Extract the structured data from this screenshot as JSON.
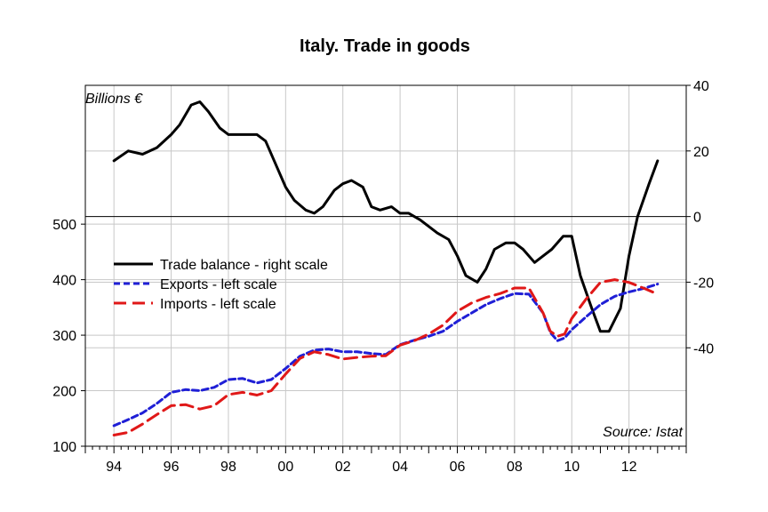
{
  "chart_data": {
    "type": "line",
    "title": "Italy. Trade in goods",
    "unit_label": "Billions €",
    "source": "Source: Istat",
    "x_tick_labels": [
      "94",
      "96",
      "98",
      "00",
      "02",
      "04",
      "06",
      "08",
      "10",
      "12"
    ],
    "x_tick_years": [
      1994,
      1996,
      1998,
      2000,
      2002,
      2004,
      2006,
      2008,
      2010,
      2012
    ],
    "xlim": [
      1993.0,
      2014.0
    ],
    "left_axis": {
      "ticks": [
        100,
        200,
        300,
        400,
        500
      ],
      "ylim": [
        100,
        750
      ]
    },
    "right_axis": {
      "ticks": [
        40,
        20,
        0,
        -20,
        -40
      ],
      "ylim": [
        -70,
        40
      ]
    },
    "legend": [
      "Trade balance - right scale",
      "Exports - left scale",
      "Imports - left scale"
    ],
    "colors": {
      "balance": "#000000",
      "exports": "#1f1fd6",
      "imports": "#e01818",
      "grid": "#c8c8c8"
    },
    "series": [
      {
        "name": "Trade balance - right scale",
        "axis": "right",
        "x": [
          1994.0,
          1994.5,
          1995.0,
          1995.5,
          1996.0,
          1996.3,
          1996.7,
          1997.0,
          1997.3,
          1997.7,
          1998.0,
          1998.5,
          1999.0,
          1999.3,
          1999.7,
          2000.0,
          2000.3,
          2000.7,
          2001.0,
          2001.3,
          2001.7,
          2002.0,
          2002.3,
          2002.7,
          2003.0,
          2003.3,
          2003.7,
          2004.0,
          2004.3,
          2004.7,
          2005.0,
          2005.3,
          2005.7,
          2006.0,
          2006.3,
          2006.7,
          2007.0,
          2007.3,
          2007.7,
          2008.0,
          2008.3,
          2008.7,
          2009.0,
          2009.3,
          2009.7,
          2010.0,
          2010.3,
          2010.7,
          2011.0,
          2011.3,
          2011.7,
          2012.0,
          2012.3,
          2012.7,
          2013.0
        ],
        "values": [
          17,
          20,
          19,
          21,
          25,
          28,
          34,
          35,
          32,
          27,
          25,
          25,
          25,
          23,
          15,
          9,
          5,
          2,
          1,
          3,
          8,
          10,
          11,
          9,
          3,
          2,
          3,
          1,
          1,
          -1,
          -3,
          -5,
          -7,
          -12,
          -18,
          -20,
          -16,
          -10,
          -8,
          -8,
          -10,
          -14,
          -12,
          -10,
          -6,
          -6,
          -18,
          -28,
          -35,
          -35,
          -28,
          -12,
          0,
          10,
          17
        ]
      },
      {
        "name": "Exports - left scale",
        "axis": "left",
        "x": [
          1994.0,
          1994.5,
          1995.0,
          1995.5,
          1996.0,
          1996.5,
          1997.0,
          1997.5,
          1998.0,
          1998.5,
          1999.0,
          1999.5,
          2000.0,
          2000.5,
          2001.0,
          2001.5,
          2002.0,
          2002.5,
          2003.0,
          2003.5,
          2004.0,
          2004.5,
          2005.0,
          2005.5,
          2006.0,
          2006.5,
          2007.0,
          2007.5,
          2008.0,
          2008.5,
          2009.0,
          2009.25,
          2009.5,
          2009.75,
          2010.0,
          2010.5,
          2011.0,
          2011.5,
          2012.0,
          2012.5,
          2013.0
        ],
        "values": [
          137,
          148,
          160,
          177,
          197,
          202,
          200,
          206,
          220,
          222,
          214,
          220,
          240,
          262,
          273,
          275,
          270,
          270,
          267,
          265,
          283,
          291,
          298,
          307,
          325,
          340,
          355,
          366,
          375,
          374,
          340,
          305,
          290,
          295,
          310,
          333,
          355,
          370,
          378,
          384,
          392
        ]
      },
      {
        "name": "Imports - left scale",
        "axis": "left",
        "x": [
          1994.0,
          1994.5,
          1995.0,
          1995.5,
          1996.0,
          1996.5,
          1997.0,
          1997.5,
          1998.0,
          1998.5,
          1999.0,
          1999.5,
          2000.0,
          2000.5,
          2001.0,
          2001.5,
          2002.0,
          2002.5,
          2003.0,
          2003.5,
          2004.0,
          2004.5,
          2005.0,
          2005.5,
          2006.0,
          2006.5,
          2007.0,
          2007.5,
          2008.0,
          2008.5,
          2009.0,
          2009.25,
          2009.5,
          2009.75,
          2010.0,
          2010.5,
          2011.0,
          2011.5,
          2012.0,
          2012.5,
          2013.0
        ],
        "values": [
          120,
          125,
          140,
          157,
          173,
          175,
          167,
          173,
          193,
          197,
          192,
          200,
          230,
          258,
          270,
          265,
          257,
          260,
          262,
          263,
          282,
          290,
          302,
          318,
          343,
          358,
          368,
          375,
          385,
          385,
          340,
          307,
          298,
          302,
          330,
          365,
          395,
          400,
          395,
          385,
          374
        ]
      }
    ]
  }
}
